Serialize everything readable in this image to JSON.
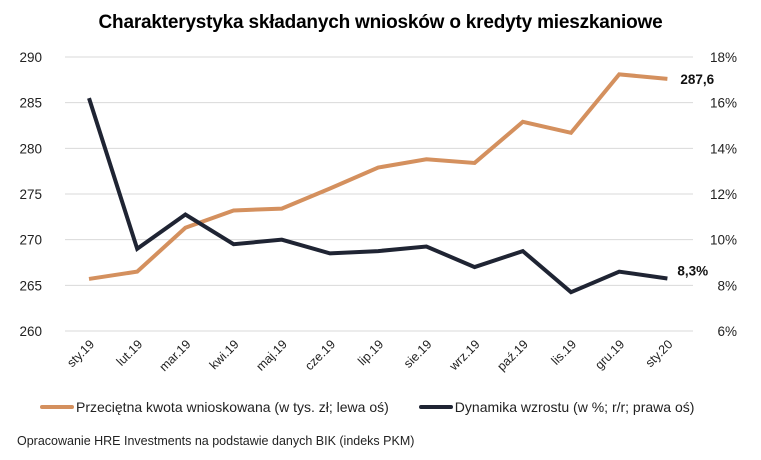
{
  "title": "Charakterystyka składanych wniosków o kredyty mieszkaniowe",
  "legend": {
    "series1": "Przeciętna kwota wnioskowana (w tys. zł; lewa oś)",
    "series2": "Dynamika wzrostu (w %; r/r; prawa oś)"
  },
  "source": "Opracowanie HRE Investments na podstawie danych BIK (indeks PKM)",
  "end_labels": {
    "series1": "287,6",
    "series2": "8,3%"
  },
  "colors": {
    "series1": "#D4905E",
    "series2": "#1F2433",
    "grid": "#D9D9D9"
  },
  "chart_data": {
    "type": "line",
    "title": "Charakterystyka składanych wniosków o kredyty mieszkaniowe",
    "categories": [
      "sty.19",
      "lut.19",
      "mar.19",
      "kwi.19",
      "maj.19",
      "cze.19",
      "lip.19",
      "sie.19",
      "wrz.19",
      "paź.19",
      "lis.19",
      "gru.19",
      "sty.20"
    ],
    "series": [
      {
        "name": "Przeciętna kwota wnioskowana (w tys. zł; lewa oś)",
        "axis": "left",
        "values": [
          265.7,
          266.5,
          271.3,
          273.2,
          273.4,
          275.6,
          277.9,
          278.8,
          278.4,
          282.9,
          281.7,
          288.1,
          287.6
        ]
      },
      {
        "name": "Dynamika wzrostu (w %; r/r; prawa oś)",
        "axis": "right",
        "values": [
          16.2,
          9.6,
          11.1,
          9.8,
          10.0,
          9.4,
          9.5,
          9.7,
          8.8,
          9.5,
          7.7,
          8.6,
          8.3
        ]
      }
    ],
    "left_axis": {
      "ylim": [
        260,
        290
      ],
      "ticks": [
        "260",
        "265",
        "270",
        "275",
        "280",
        "285",
        "290"
      ]
    },
    "right_axis": {
      "ylim": [
        6,
        18
      ],
      "ticks": [
        "6%",
        "8%",
        "10%",
        "12%",
        "14%",
        "16%",
        "18%"
      ]
    },
    "xlabel": "",
    "ylabel": "",
    "grid": true,
    "legend_position": "bottom"
  }
}
